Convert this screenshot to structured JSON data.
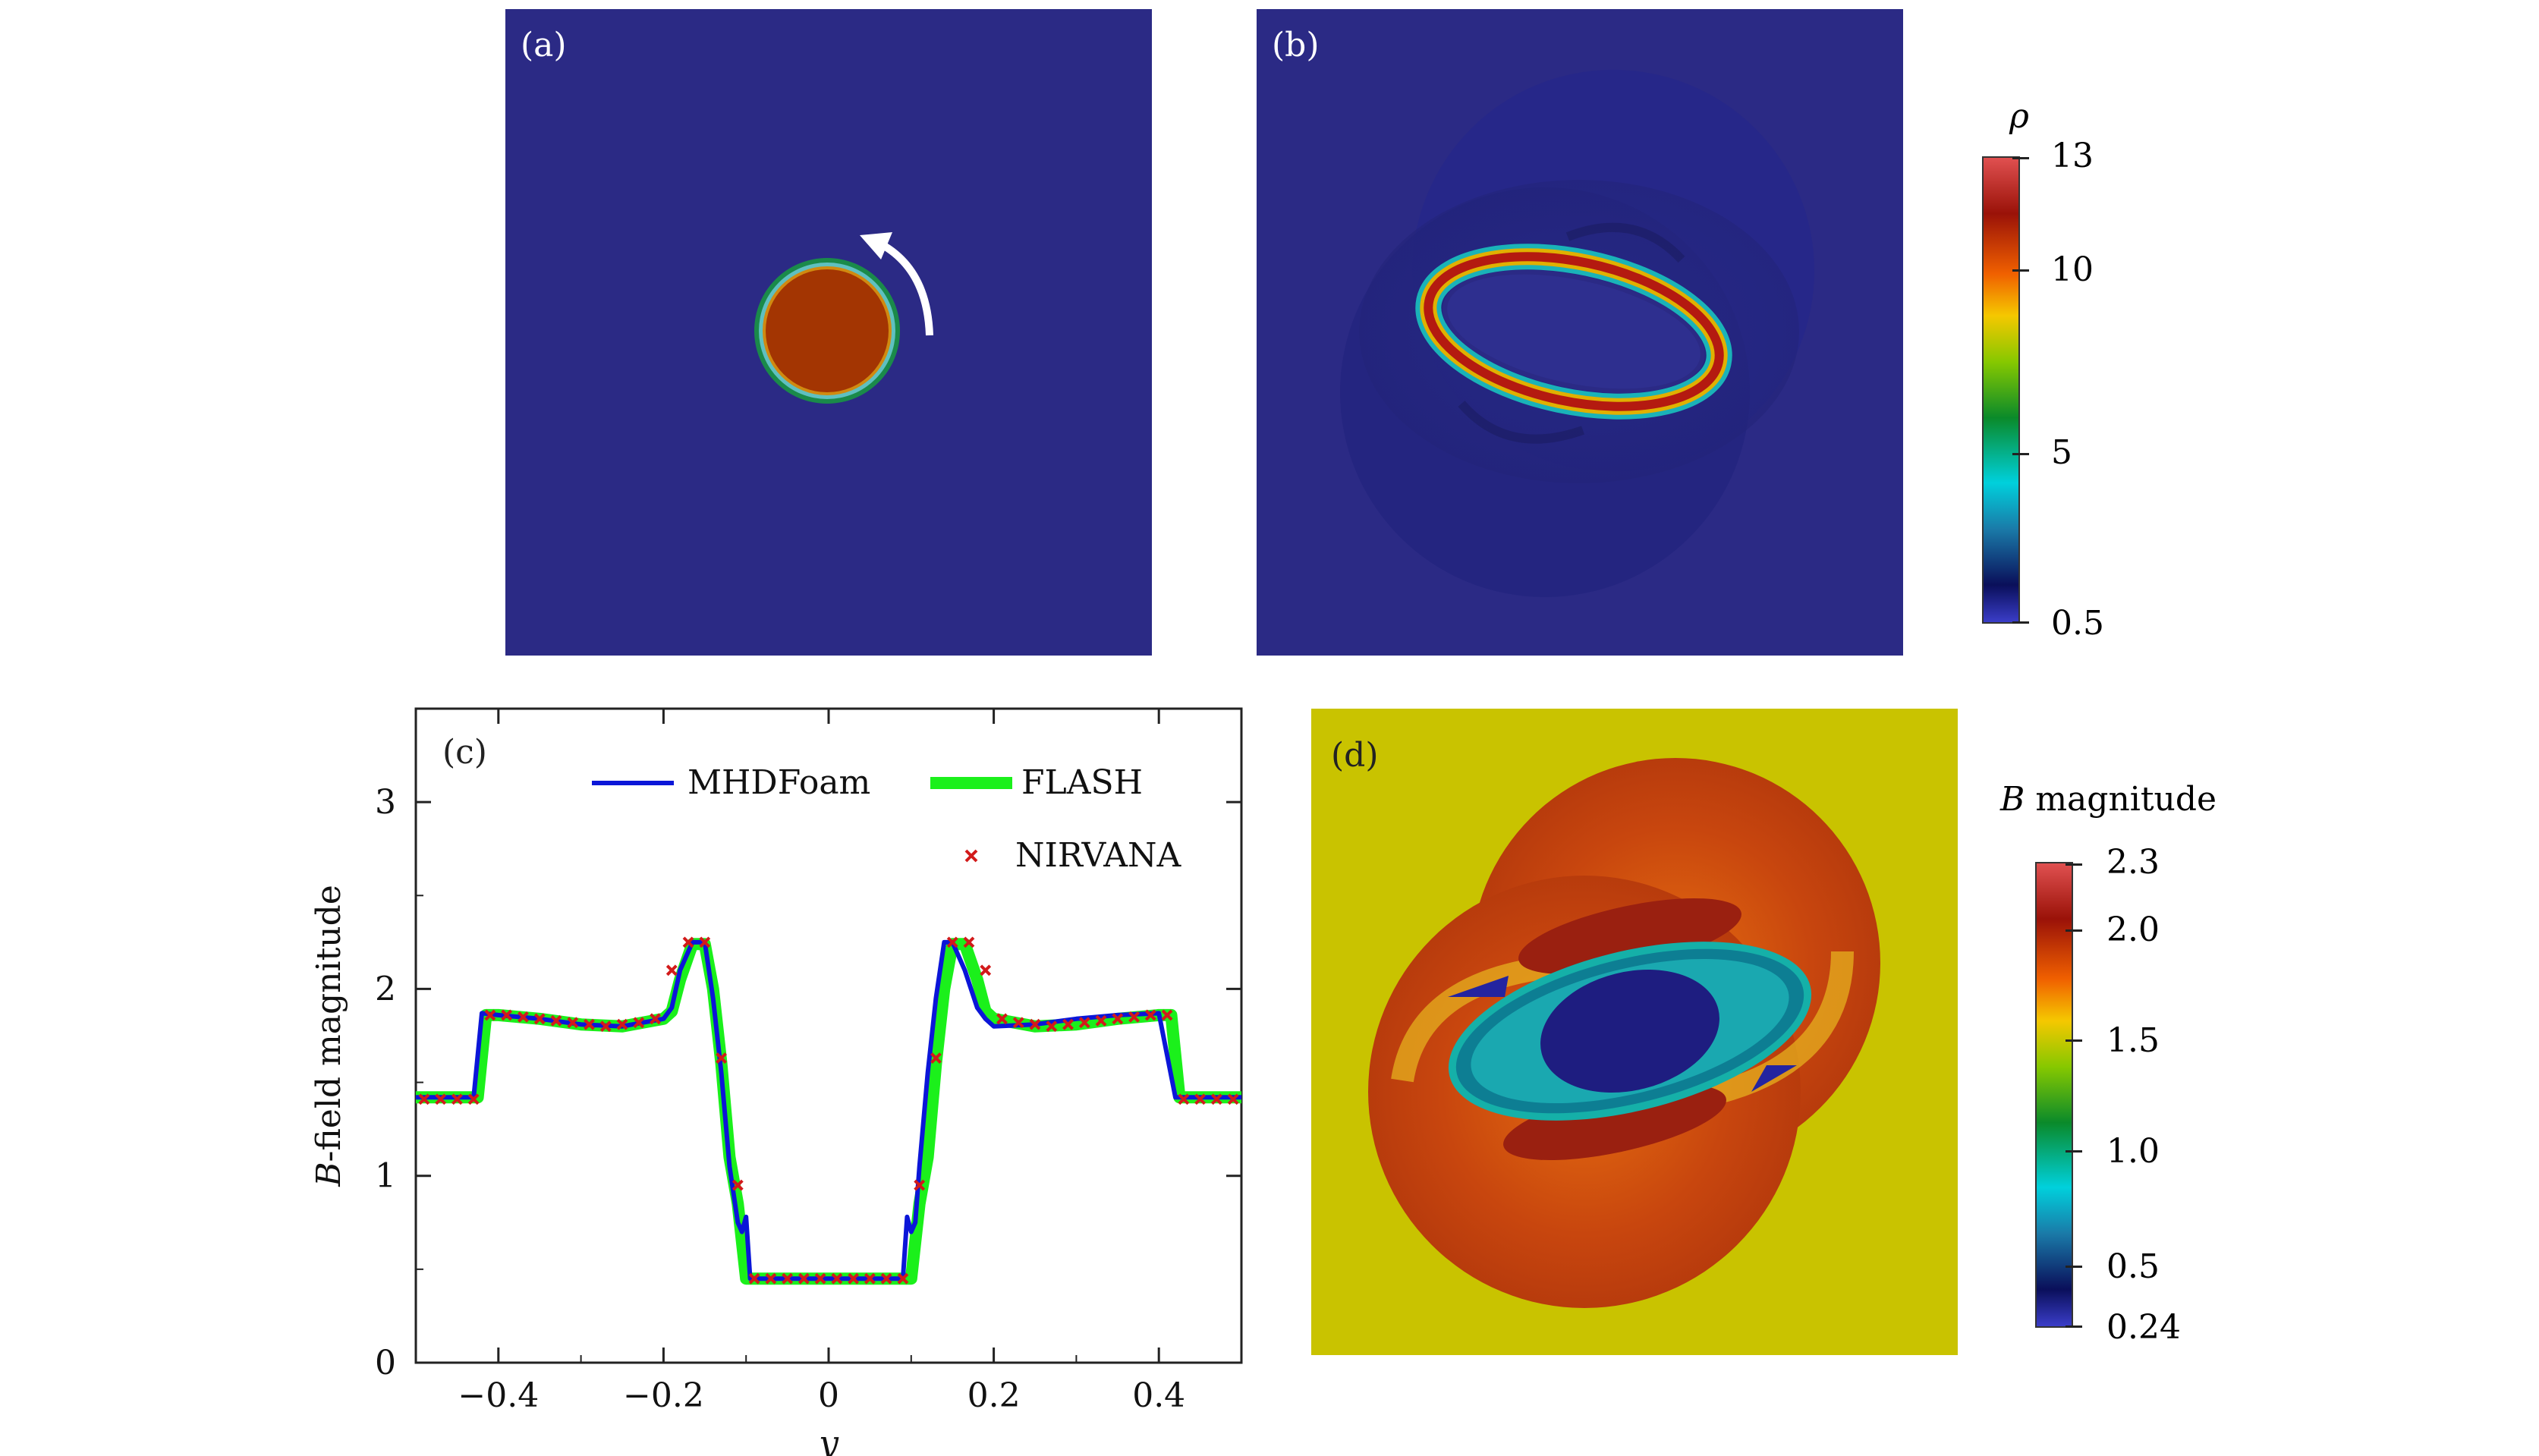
{
  "panels": {
    "a": {
      "label": "(a)"
    },
    "b": {
      "label": "(b)"
    },
    "c": {
      "label": "(c)"
    },
    "d": {
      "label": "(d)"
    }
  },
  "colorbar_rho": {
    "title": "ρ",
    "ticks": [
      "13",
      "10",
      "5",
      "0.5"
    ],
    "colormap": [
      "#3a3dc8",
      "#0a0f5a",
      "#00c8d8",
      "#0a8a2a",
      "#86c800",
      "#f5c800",
      "#f06000",
      "#9a1208",
      "#e05050"
    ]
  },
  "colorbar_B": {
    "title": "B magnitude",
    "title_italic": "B",
    "title_rest": " magnitude",
    "ticks": [
      "2.3",
      "2.0",
      "1.5",
      "1.0",
      "0.5",
      "0.24"
    ],
    "colormap": [
      "#3a3dc8",
      "#0a0f5a",
      "#00c8d8",
      "#0a8a2a",
      "#86c800",
      "#f5c800",
      "#f06000",
      "#9a1208",
      "#e05050"
    ]
  },
  "colors": {
    "background_field": "#2b2a85",
    "yellow_field": "#c9c300",
    "mhdfoam": "#0b16d8",
    "flash": "#1bf01b",
    "nirvana": "#d21a1a"
  },
  "chart_data": {
    "type": "line",
    "xlabel": "y",
    "ylabel": "B-field magnitude",
    "ylabel_italic": "B",
    "ylabel_rest": "-field magnitude",
    "xlim": [
      -0.5,
      0.5
    ],
    "ylim": [
      0,
      3.5
    ],
    "xticks": [
      -0.4,
      -0.2,
      0,
      0.2,
      0.4
    ],
    "xtick_labels": [
      "−0.4",
      "−0.2",
      "0",
      "0.2",
      "0.4"
    ],
    "yticks": [
      0,
      1,
      2,
      3
    ],
    "ytick_labels": [
      "0",
      "1",
      "2",
      "3"
    ],
    "legend_position": "top-right",
    "series": [
      {
        "name": "MHDFoam",
        "style": "line",
        "x": [
          -0.5,
          -0.43,
          -0.42,
          -0.4,
          -0.35,
          -0.3,
          -0.25,
          -0.2,
          -0.19,
          -0.18,
          -0.165,
          -0.15,
          -0.14,
          -0.13,
          -0.12,
          -0.11,
          -0.105,
          -0.1,
          -0.095,
          -0.09,
          -0.05,
          0,
          0.05,
          0.09,
          0.095,
          0.1,
          0.105,
          0.11,
          0.12,
          0.13,
          0.14,
          0.15,
          0.165,
          0.18,
          0.19,
          0.2,
          0.25,
          0.3,
          0.35,
          0.4,
          0.42,
          0.43,
          0.5
        ],
        "y": [
          1.42,
          1.42,
          1.87,
          1.86,
          1.84,
          1.81,
          1.8,
          1.84,
          1.9,
          2.1,
          2.25,
          2.25,
          1.95,
          1.55,
          1.05,
          0.75,
          0.7,
          0.78,
          0.45,
          0.45,
          0.45,
          0.45,
          0.45,
          0.45,
          0.78,
          0.7,
          0.75,
          1.05,
          1.55,
          1.95,
          2.25,
          2.25,
          2.1,
          1.9,
          1.84,
          1.8,
          1.81,
          1.84,
          1.86,
          1.87,
          1.42,
          1.42,
          1.42
        ]
      },
      {
        "name": "FLASH",
        "style": "thick-line",
        "x": [
          -0.5,
          -0.425,
          -0.415,
          -0.4,
          -0.35,
          -0.3,
          -0.25,
          -0.2,
          -0.19,
          -0.18,
          -0.165,
          -0.15,
          -0.14,
          -0.13,
          -0.12,
          -0.11,
          -0.1,
          -0.09,
          -0.05,
          0,
          0.05,
          0.09,
          0.1,
          0.11,
          0.12,
          0.13,
          0.14,
          0.15,
          0.165,
          0.18,
          0.19,
          0.2,
          0.25,
          0.3,
          0.35,
          0.4,
          0.415,
          0.425,
          0.5
        ],
        "y": [
          1.42,
          1.42,
          1.86,
          1.86,
          1.84,
          1.81,
          1.8,
          1.84,
          1.88,
          2.05,
          2.24,
          2.24,
          2.0,
          1.6,
          1.1,
          0.85,
          0.45,
          0.45,
          0.45,
          0.45,
          0.45,
          0.45,
          0.45,
          0.85,
          1.1,
          1.6,
          2.0,
          2.24,
          2.24,
          2.05,
          1.88,
          1.84,
          1.8,
          1.81,
          1.84,
          1.86,
          1.86,
          1.42,
          1.42
        ]
      },
      {
        "name": "NIRVANA",
        "style": "markers",
        "x": [
          -0.49,
          -0.47,
          -0.45,
          -0.43,
          -0.41,
          -0.39,
          -0.37,
          -0.35,
          -0.33,
          -0.31,
          -0.29,
          -0.27,
          -0.25,
          -0.23,
          -0.21,
          -0.19,
          -0.17,
          -0.15,
          -0.13,
          -0.11,
          -0.09,
          -0.07,
          -0.05,
          -0.03,
          -0.01,
          0.01,
          0.03,
          0.05,
          0.07,
          0.09,
          0.11,
          0.13,
          0.15,
          0.17,
          0.19,
          0.21,
          0.23,
          0.25,
          0.27,
          0.29,
          0.31,
          0.33,
          0.35,
          0.37,
          0.39,
          0.41,
          0.43,
          0.45,
          0.47,
          0.49
        ],
        "y": [
          1.41,
          1.41,
          1.41,
          1.41,
          1.86,
          1.86,
          1.85,
          1.84,
          1.83,
          1.82,
          1.81,
          1.8,
          1.81,
          1.82,
          1.84,
          2.1,
          2.25,
          2.25,
          1.63,
          0.95,
          0.45,
          0.45,
          0.45,
          0.45,
          0.45,
          0.45,
          0.45,
          0.45,
          0.45,
          0.45,
          0.95,
          1.63,
          2.25,
          2.25,
          2.1,
          1.84,
          1.82,
          1.81,
          1.8,
          1.81,
          1.82,
          1.83,
          1.84,
          1.85,
          1.86,
          1.86,
          1.41,
          1.41,
          1.41,
          1.41
        ]
      }
    ]
  }
}
